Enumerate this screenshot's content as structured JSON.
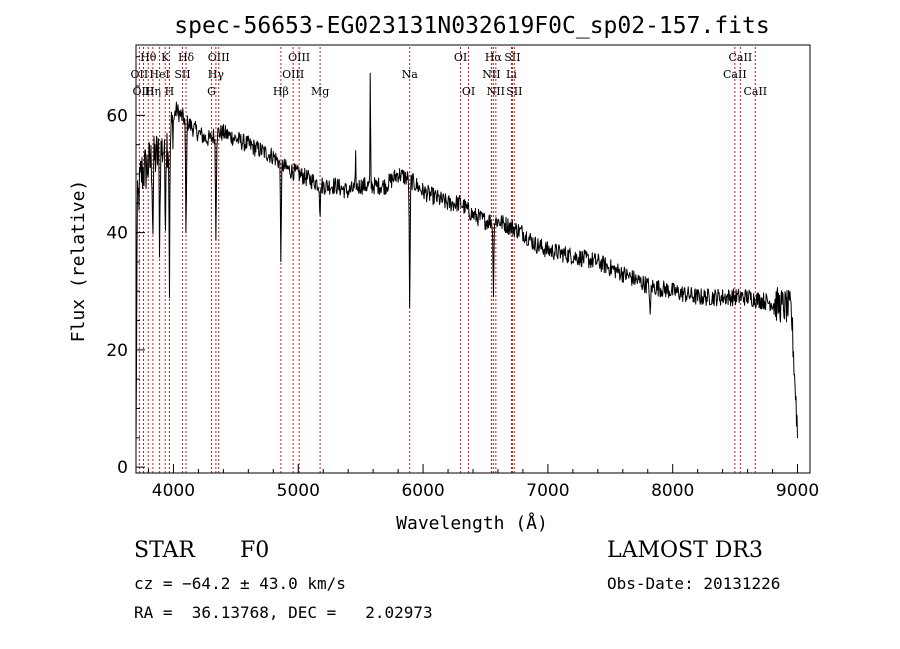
{
  "chart_data": {
    "type": "line",
    "title": "spec-56653-EG023131N032619F0C_sp02-157.fits",
    "xlabel": "Wavelength (Å)",
    "ylabel": "Flux (relative)",
    "xlim": [
      3700,
      9100
    ],
    "ylim": [
      -1,
      72
    ],
    "x_ticks": [
      4000,
      5000,
      6000,
      7000,
      8000,
      9000
    ],
    "y_ticks": [
      0,
      20,
      40,
      60
    ],
    "grid": false,
    "line_color": "#000000",
    "marker_color": "#b22222",
    "spectrum_knots": {
      "x": [
        3700,
        3710,
        3740,
        3780,
        3820,
        3860,
        3900,
        3940,
        3980,
        4020,
        4060,
        4100,
        4150,
        4200,
        4260,
        4300,
        4340,
        4400,
        4500,
        4600,
        4700,
        4800,
        4900,
        5000,
        5100,
        5200,
        5300,
        5400,
        5500,
        5600,
        5700,
        5800,
        5900,
        6000,
        6100,
        6200,
        6300,
        6400,
        6500,
        6600,
        6700,
        6800,
        6900,
        7000,
        7200,
        7400,
        7600,
        7800,
        8000,
        8200,
        8400,
        8600,
        8800,
        8950,
        9000
      ],
      "y": [
        2,
        44,
        50,
        51,
        52,
        53,
        54,
        55,
        57,
        61,
        60,
        59,
        58,
        57,
        56,
        56,
        57,
        57,
        56,
        55,
        54,
        53,
        51,
        50,
        49,
        48,
        48,
        47,
        48,
        48,
        48,
        50,
        49,
        47,
        46,
        45,
        45,
        43,
        42,
        42,
        41,
        40,
        38,
        37,
        36,
        35,
        33,
        31,
        30,
        29,
        29,
        29,
        28,
        27,
        6
      ]
    },
    "absorption_features": [
      {
        "x": 3835,
        "depth": 12
      },
      {
        "x": 3889,
        "depth": 15
      },
      {
        "x": 3934,
        "depth": 12
      },
      {
        "x": 3968,
        "depth": 25
      },
      {
        "x": 4101,
        "depth": 20
      },
      {
        "x": 4340,
        "depth": 17
      },
      {
        "x": 4861,
        "depth": 16
      },
      {
        "x": 5175,
        "depth": 5
      },
      {
        "x": 5893,
        "depth": 22
      },
      {
        "x": 6563,
        "depth": 12
      },
      {
        "x": 7820,
        "depth": 6
      }
    ],
    "emission_features": [
      {
        "x": 5577,
        "height": 20
      },
      {
        "x": 5460,
        "height": 5
      }
    ],
    "line_markers": [
      {
        "label": "Hθ",
        "x": 3798,
        "row": 1
      },
      {
        "label": "OII",
        "x": 3727,
        "row": 2
      },
      {
        "label": "OIII",
        "x": 3760,
        "row": 3
      },
      {
        "label": "Hη",
        "x": 3835,
        "row": 3
      },
      {
        "label": "HeI",
        "x": 3889,
        "row": 2
      },
      {
        "label": "K",
        "x": 3934,
        "row": 1
      },
      {
        "label": "H",
        "x": 3968,
        "row": 3
      },
      {
        "label": "Hδ",
        "x": 4101,
        "row": 1
      },
      {
        "label": "SII",
        "x": 4072,
        "row": 2
      },
      {
        "label": "OIII",
        "x": 4363,
        "row": 1
      },
      {
        "label": "Hγ",
        "x": 4340,
        "row": 2
      },
      {
        "label": "G",
        "x": 4305,
        "row": 3
      },
      {
        "label": "Hβ",
        "x": 4861,
        "row": 3
      },
      {
        "label": "OIII",
        "x": 5007,
        "row": 1
      },
      {
        "label": "OIII",
        "x": 4959,
        "row": 2
      },
      {
        "label": "Mg",
        "x": 5175,
        "row": 3
      },
      {
        "label": "Na",
        "x": 5893,
        "row": 2
      },
      {
        "label": "OI",
        "x": 6300,
        "row": 1
      },
      {
        "label": "OI",
        "x": 6364,
        "row": 3
      },
      {
        "label": "Hα",
        "x": 6563,
        "row": 1
      },
      {
        "label": "NII",
        "x": 6548,
        "row": 2
      },
      {
        "label": "NII",
        "x": 6583,
        "row": 3
      },
      {
        "label": "SII",
        "x": 6716,
        "row": 1
      },
      {
        "label": "Li",
        "x": 6708,
        "row": 2
      },
      {
        "label": "SII",
        "x": 6731,
        "row": 3
      },
      {
        "label": "CaII",
        "x": 8542,
        "row": 1
      },
      {
        "label": "CaII",
        "x": 8498,
        "row": 2
      },
      {
        "label": "CaII",
        "x": 8662,
        "row": 3
      }
    ]
  },
  "info": {
    "object_class": "STAR",
    "subclass": "F0",
    "survey": "LAMOST DR3",
    "redshift_text": "cz = −64.2 ± 43.0 km/s",
    "obs_date": "Obs-Date: 20131226",
    "coords_text": "RA =  36.13768, DEC =   2.02973"
  }
}
